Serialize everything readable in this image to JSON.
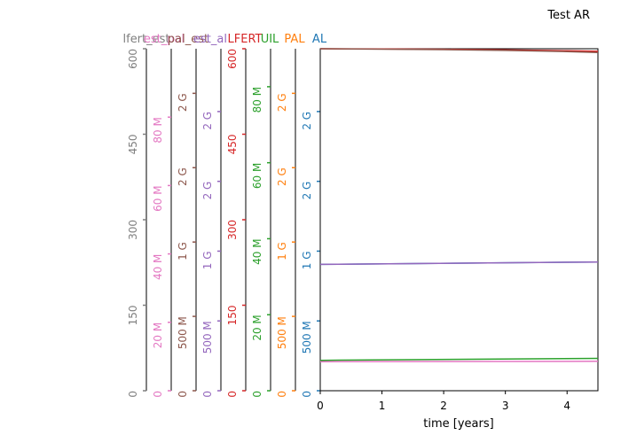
{
  "chart_data": {
    "type": "line",
    "title": "Test AR",
    "xlabel": "time [years]",
    "xlim": [
      0,
      4.5
    ],
    "x_ticks": [
      "0",
      "1",
      "2",
      "3",
      "4"
    ],
    "axes": [
      {
        "key": "lfert_est",
        "label": "lfert_est",
        "color": "#7f7f7f",
        "tick_values": [
          0,
          150,
          300,
          450,
          600
        ],
        "tick_labels": [
          "0",
          "150",
          "300",
          "450",
          "600"
        ],
        "ylim": [
          0,
          600
        ]
      },
      {
        "key": "est_pal",
        "label": "est_pal",
        "color": "#e377c2",
        "tick_values": [
          0,
          20000000,
          40000000,
          60000000,
          80000000
        ],
        "tick_labels": [
          "0",
          "20 M",
          "40 M",
          "60 M",
          "80 M"
        ],
        "ylim": [
          0,
          100000000
        ]
      },
      {
        "key": "pal_est",
        "label": "pal_est",
        "color": "#8c564b",
        "tick_values": [
          0,
          500000000,
          1000000000,
          1500000000,
          2000000000
        ],
        "tick_labels": [
          "0",
          "500 M",
          "1 G",
          "2 G",
          "2 G"
        ],
        "ylim": [
          0,
          2300000000
        ]
      },
      {
        "key": "est_al",
        "label": "est_al",
        "color": "#9467bd",
        "tick_values": [
          0,
          500000000,
          1000000000,
          1500000000,
          2000000000
        ],
        "tick_labels": [
          "0",
          "500 M",
          "1 G",
          "2 G",
          "2 G"
        ],
        "ylim": [
          0,
          2450000000
        ]
      },
      {
        "key": "LFERT",
        "label": "LFERT",
        "color": "#d62728",
        "tick_values": [
          0,
          150,
          300,
          450,
          600
        ],
        "tick_labels": [
          "0",
          "150",
          "300",
          "450",
          "600"
        ],
        "ylim": [
          0,
          600
        ]
      },
      {
        "key": "UIL",
        "label": "UIL",
        "color": "#2ca02c",
        "tick_values": [
          0,
          20000000,
          40000000,
          60000000,
          80000000
        ],
        "tick_labels": [
          "0",
          "20 M",
          "40 M",
          "60 M",
          "80 M"
        ],
        "ylim": [
          0,
          90000000
        ]
      },
      {
        "key": "PAL",
        "label": "PAL",
        "color": "#ff7f0e",
        "tick_values": [
          0,
          500000000,
          1000000000,
          1500000000,
          2000000000
        ],
        "tick_labels": [
          "0",
          "500 M",
          "1 G",
          "2 G",
          "2 G"
        ],
        "ylim": [
          0,
          2300000000
        ]
      },
      {
        "key": "AL",
        "label": "AL",
        "color": "#1f77b4",
        "tick_values": [
          0,
          500000000,
          1000000000,
          1500000000,
          2000000000
        ],
        "tick_labels": [
          "0",
          "500 M",
          "1 G",
          "2 G",
          "2 G"
        ],
        "ylim": [
          0,
          2450000000
        ]
      }
    ],
    "series": [
      {
        "axis": "LFERT",
        "color": "#d62728",
        "x": [
          0,
          1,
          2,
          3,
          4,
          4.5
        ],
        "y": [
          600,
          599.5,
          599,
          598,
          596.5,
          595.5
        ]
      },
      {
        "axis": "lfert_est",
        "color": "#8c564b",
        "x": [
          0,
          1,
          2,
          3,
          4,
          4.5
        ],
        "y": [
          600,
          599.3,
          598.5,
          597,
          595,
          593.5
        ]
      },
      {
        "axis": "AL",
        "color": "#1f77b4",
        "x": [
          0,
          4.5
        ],
        "y": [
          905000000,
          922000000
        ]
      },
      {
        "axis": "est_al",
        "color": "#9467bd",
        "x": [
          0,
          4.5
        ],
        "y": [
          905000000,
          922000000
        ]
      },
      {
        "axis": "UIL",
        "color": "#2ca02c",
        "x": [
          0,
          4.5
        ],
        "y": [
          8000000,
          8500000
        ]
      },
      {
        "axis": "est_pal",
        "color": "#e377c2",
        "x": [
          0,
          4.5
        ],
        "y": [
          8500000,
          8600000
        ]
      }
    ]
  }
}
